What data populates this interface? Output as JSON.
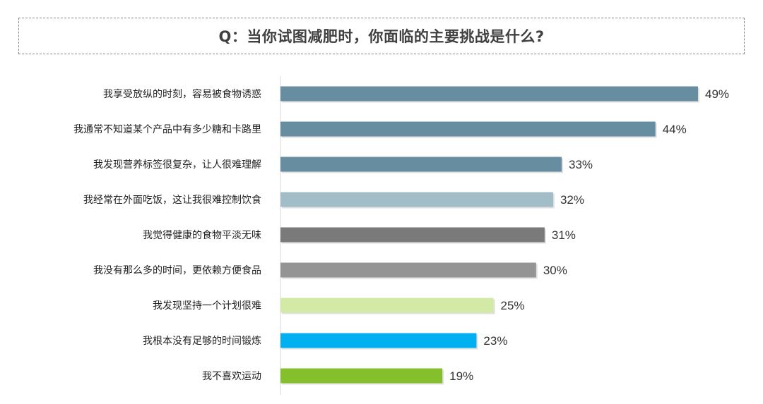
{
  "header": {
    "title": "Q：当你试图减肥时，你面临的主要挑战是什么?"
  },
  "chart_data": {
    "type": "bar",
    "orientation": "horizontal",
    "title": "Q：当你试图减肥时，你面临的主要挑战是什么?",
    "xlabel": "",
    "ylabel": "",
    "xlim": [
      0,
      49
    ],
    "grid": false,
    "legend": "none",
    "value_suffix": "%",
    "categories": [
      "我享受放纵的时刻，容易被食物诱惑",
      "我通常不知道某个产品中有多少糖和卡路里",
      "我发现营养标签很复杂，让人很难理解",
      "我经常在外面吃饭，这让我很难控制饮食",
      "我觉得健康的食物平淡无味",
      "我没有那么多的时间，更依赖方便食品",
      "我发现坚持一个计划很难",
      "我根本没有足够的时间锻炼",
      "我不喜欢运动"
    ],
    "values": [
      49,
      44,
      33,
      32,
      31,
      30,
      25,
      23,
      19
    ],
    "value_labels": [
      "49%",
      "44%",
      "33%",
      "32%",
      "31%",
      "30%",
      "25%",
      "23%",
      "19%"
    ],
    "bar_colors": [
      "#668da0",
      "#668da0",
      "#668da0",
      "#a2bcc8",
      "#7a7a7a",
      "#949494",
      "#d3e9a6",
      "#00b0f0",
      "#86bf2c"
    ]
  }
}
